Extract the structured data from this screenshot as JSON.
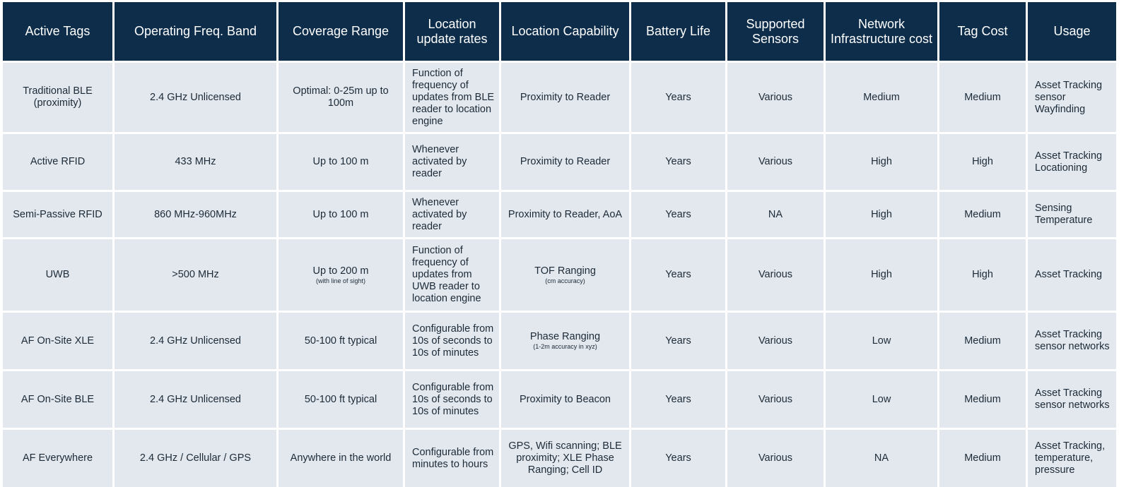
{
  "headers": [
    "Active Tags",
    "Operating Freq. Band",
    "Coverage Range",
    "Location update rates",
    "Location Capability",
    "Battery Life",
    "Supported Sensors",
    "Network Infrastructure cost",
    "Tag Cost",
    "Usage"
  ],
  "rows": [
    {
      "tag": "Traditional BLE (proximity)",
      "freq": "2.4 GHz Unlicensed",
      "coverage": "Optimal: 0-25m up to 100m",
      "coverage_note": "",
      "update": "Function of frequency of updates  from BLE reader to location engine",
      "capability": "Proximity to Reader",
      "capability_note": "",
      "battery": "Years",
      "sensors": "Various",
      "infra": "Medium",
      "cost": "Medium",
      "usage": "Asset Tracking sensor Wayfinding"
    },
    {
      "tag": "Active RFID",
      "freq": "433 MHz",
      "coverage": "Up to 100 m",
      "coverage_note": "",
      "update": "Whenever activated by reader",
      "capability": "Proximity to Reader",
      "capability_note": "",
      "battery": "Years",
      "sensors": "Various",
      "infra": "High",
      "cost": "High",
      "usage": "Asset Tracking Locationing"
    },
    {
      "tag": "Semi-Passive RFID",
      "freq": "860 MHz-960MHz",
      "coverage": "Up to 100 m",
      "coverage_note": "",
      "update": "Whenever activated by reader",
      "capability": "Proximity to Reader, AoA",
      "capability_note": "",
      "battery": "Years",
      "sensors": "NA",
      "infra": "High",
      "cost": "Medium",
      "usage": "Sensing Temperature"
    },
    {
      "tag": "UWB",
      "freq": ">500 MHz",
      "coverage": "Up to 200 m",
      "coverage_note": "(with line of sight)",
      "update": "Function of frequency of updates from UWB reader to location engine",
      "capability": "TOF Ranging",
      "capability_note": "(cm accuracy)",
      "battery": "Years",
      "sensors": "Various",
      "infra": "High",
      "cost": "High",
      "usage": "Asset Tracking"
    },
    {
      "tag": "AF On-Site XLE",
      "freq": "2.4 GHz Unlicensed",
      "coverage": "50-100 ft typical",
      "coverage_note": "",
      "update": "Configurable from 10s of seconds to 10s of minutes",
      "capability": "Phase Ranging",
      "capability_note": "(1-2m accuracy in xyz)",
      "battery": "Years",
      "sensors": "Various",
      "infra": "Low",
      "cost": "Medium",
      "usage": "Asset Tracking sensor networks"
    },
    {
      "tag": "AF On-Site BLE",
      "freq": "2.4 GHz Unlicensed",
      "coverage": "50-100 ft typical",
      "coverage_note": "",
      "update": "Configurable from 10s of seconds to 10s of minutes",
      "capability": "Proximity to Beacon",
      "capability_note": "",
      "battery": "Years",
      "sensors": "Various",
      "infra": "Low",
      "cost": "Medium",
      "usage": "Asset Tracking sensor networks"
    },
    {
      "tag": "AF Everywhere",
      "freq": "2.4 GHz / Cellular / GPS",
      "coverage": "Anywhere in the world",
      "coverage_note": "",
      "update": "Configurable from minutes to hours",
      "capability": "GPS, Wifi scanning; BLE proximity; XLE Phase Ranging; Cell ID",
      "capability_note": "",
      "battery": "Years",
      "sensors": "Various",
      "infra": "NA",
      "cost": "Medium",
      "usage": "Asset Tracking, temperature, pressure"
    }
  ]
}
